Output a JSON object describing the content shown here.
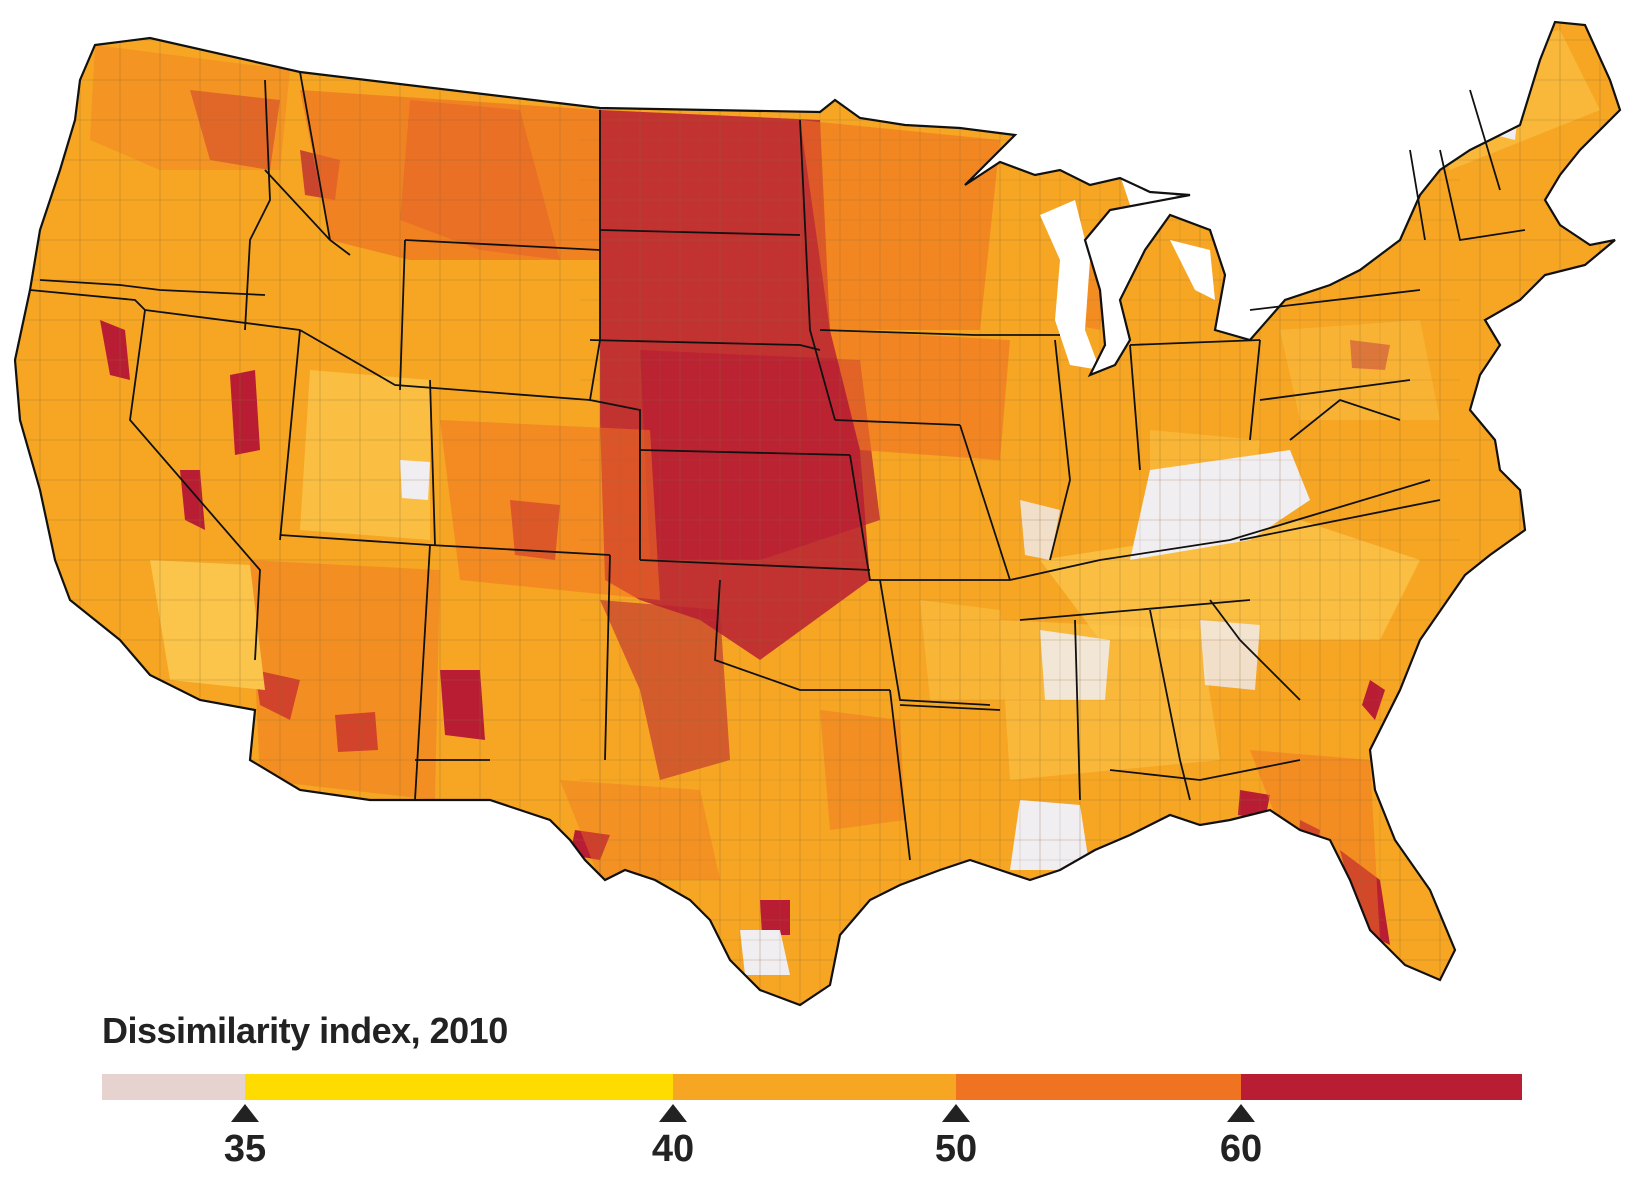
{
  "legend": {
    "title": "Dissimilarity index, 2010",
    "ticks": [
      "35",
      "40",
      "50",
      "60"
    ],
    "segments": [
      {
        "color": "#e6d3cf"
      },
      {
        "color": "#ffdc00"
      },
      {
        "color": "#f6a623"
      },
      {
        "color": "#f07322"
      },
      {
        "color": "#b81d33"
      }
    ]
  },
  "map": {
    "name": "Contiguous United States",
    "state_border_color": "#111111",
    "county_border_color": "#8a6a3a"
  }
}
